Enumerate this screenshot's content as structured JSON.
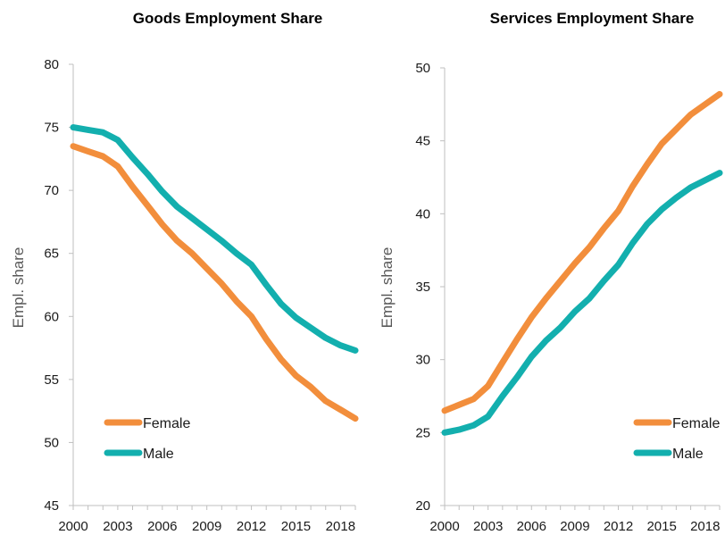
{
  "chart_data": [
    {
      "type": "line",
      "title": "Goods Employment Share",
      "ylabel": "Empl. share",
      "xlabel": "",
      "ylim": [
        45,
        80
      ],
      "yticks": [
        45,
        50,
        55,
        60,
        65,
        70,
        75,
        80
      ],
      "xlim": [
        2000,
        2019
      ],
      "xticks": [
        2000,
        2003,
        2006,
        2009,
        2012,
        2015,
        2018
      ],
      "legend_position": "lower-left",
      "grid": false,
      "x": [
        2000,
        2001,
        2002,
        2003,
        2004,
        2005,
        2006,
        2007,
        2008,
        2009,
        2010,
        2011,
        2012,
        2013,
        2014,
        2015,
        2016,
        2017,
        2018,
        2019
      ],
      "series": [
        {
          "name": "Female",
          "color": "#F28E3C",
          "values": [
            73.5,
            73.1,
            72.7,
            71.9,
            70.3,
            68.8,
            67.3,
            66.0,
            65.0,
            63.8,
            62.6,
            61.2,
            60.0,
            58.2,
            56.6,
            55.3,
            54.4,
            53.3,
            52.6,
            51.9
          ]
        },
        {
          "name": "Male",
          "color": "#13AFAE",
          "values": [
            75.0,
            74.8,
            74.6,
            74.0,
            72.6,
            71.3,
            69.9,
            68.7,
            67.8,
            66.9,
            66.0,
            65.0,
            64.1,
            62.5,
            61.0,
            59.9,
            59.1,
            58.3,
            57.7,
            57.3
          ]
        }
      ]
    },
    {
      "type": "line",
      "title": "Services Employment Share",
      "ylabel": "Empl. share",
      "xlabel": "",
      "ylim": [
        20,
        50
      ],
      "yticks": [
        20,
        25,
        30,
        35,
        40,
        45,
        50
      ],
      "xlim": [
        2000,
        2019
      ],
      "xticks": [
        2000,
        2003,
        2006,
        2009,
        2012,
        2015,
        2018
      ],
      "legend_position": "lower-right",
      "grid": false,
      "x": [
        2000,
        2001,
        2002,
        2003,
        2004,
        2005,
        2006,
        2007,
        2008,
        2009,
        2010,
        2011,
        2012,
        2013,
        2014,
        2015,
        2016,
        2017,
        2018,
        2019
      ],
      "series": [
        {
          "name": "Female",
          "color": "#F28E3C",
          "values": [
            26.5,
            26.9,
            27.3,
            28.2,
            29.8,
            31.4,
            32.9,
            34.2,
            35.4,
            36.6,
            37.7,
            39.0,
            40.2,
            41.9,
            43.4,
            44.8,
            45.8,
            46.8,
            47.5,
            48.2
          ]
        },
        {
          "name": "Male",
          "color": "#13AFAE",
          "values": [
            25.0,
            25.2,
            25.5,
            26.1,
            27.5,
            28.8,
            30.2,
            31.3,
            32.2,
            33.3,
            34.2,
            35.4,
            36.5,
            38.0,
            39.3,
            40.3,
            41.1,
            41.8,
            42.3,
            42.8
          ]
        }
      ]
    }
  ]
}
